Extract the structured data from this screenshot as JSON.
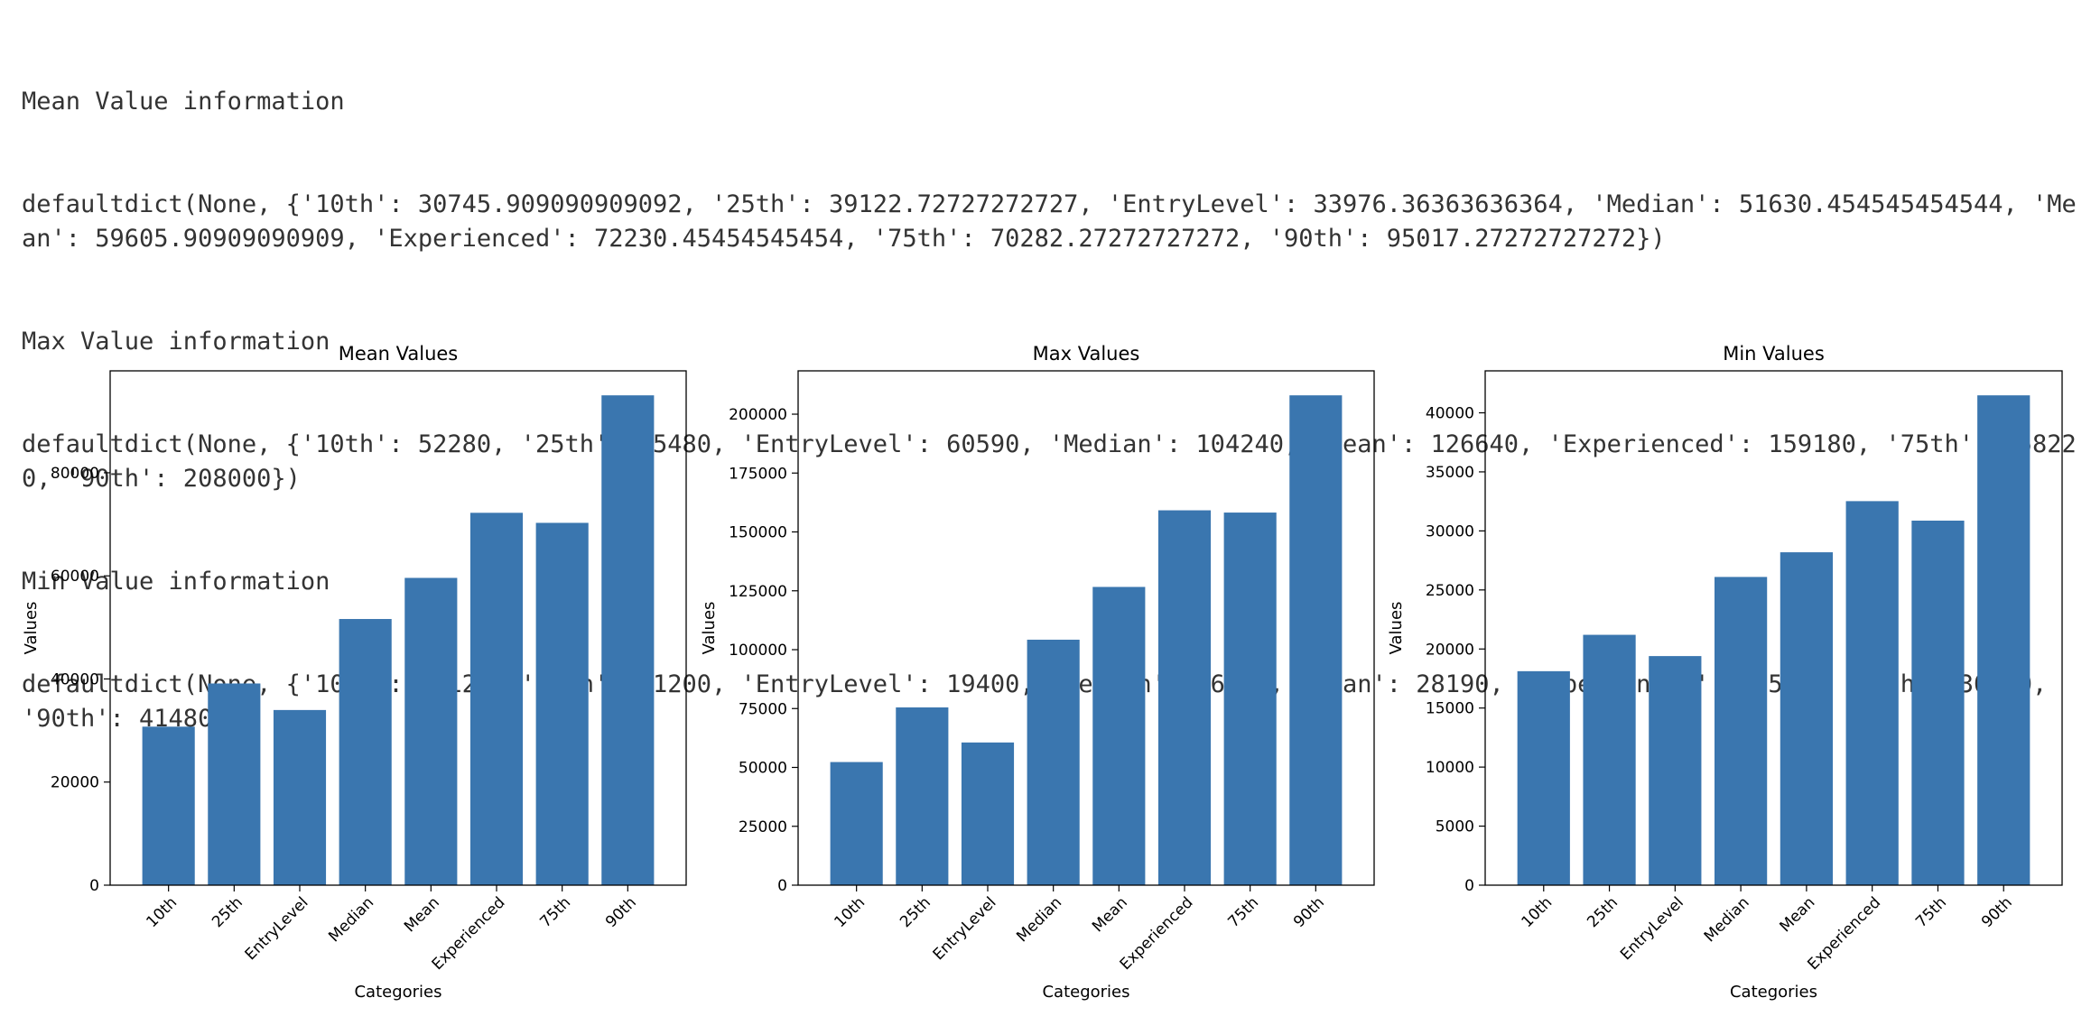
{
  "output": {
    "mean_header": "Mean Value information",
    "mean_dict": "defaultdict(None, {'10th': 30745.909090909092, '25th': 39122.72727272727, 'EntryLevel': 33976.36363636364, 'Median': 51630.454545454544, 'Mean': 59605.90909090909, 'Experienced': 72230.45454545454, '75th': 70282.27272727272, '90th': 95017.27272727272})",
    "max_header": "Max Value information",
    "max_dict": "defaultdict(None, {'10th': 52280, '25th': 75480, 'EntryLevel': 60590, 'Median': 104240, 'Mean': 126640, 'Experienced': 159180, '75th': 158220, '90th': 208000})",
    "min_header": "Min Value information",
    "min_dict": "defaultdict(None, {'10th': 18120, '25th': 21200, 'EntryLevel': 19400, 'Median': 26100, 'Mean': 28190, 'Experienced': 32520, '75th': 30870, '90th': 41480})"
  },
  "colors": {
    "bar": "#3a76af",
    "axis": "#000000"
  },
  "chart_data": [
    {
      "type": "bar",
      "title": "Mean Values",
      "xlabel": "Categories",
      "ylabel": "Values",
      "categories": [
        "10th",
        "25th",
        "EntryLevel",
        "Median",
        "Mean",
        "Experienced",
        "75th",
        "90th"
      ],
      "values": [
        30745.909090909092,
        39122.72727272727,
        33976.36363636364,
        51630.454545454544,
        59605.90909090909,
        72230.45454545454,
        70282.27272727272,
        95017.27272727272
      ],
      "ylim": [
        0,
        99768.13636363637
      ],
      "yticks": [
        0,
        20000,
        40000,
        60000,
        80000
      ],
      "grid": false,
      "legend": false
    },
    {
      "type": "bar",
      "title": "Max Values",
      "xlabel": "Categories",
      "ylabel": "Values",
      "categories": [
        "10th",
        "25th",
        "EntryLevel",
        "Median",
        "Mean",
        "Experienced",
        "75th",
        "90th"
      ],
      "values": [
        52280,
        75480,
        60590,
        104240,
        126640,
        159180,
        158220,
        208000
      ],
      "ylim": [
        0,
        218400
      ],
      "yticks": [
        0,
        25000,
        50000,
        75000,
        100000,
        125000,
        150000,
        175000,
        200000
      ],
      "grid": false,
      "legend": false
    },
    {
      "type": "bar",
      "title": "Min Values",
      "xlabel": "Categories",
      "ylabel": "Values",
      "categories": [
        "10th",
        "25th",
        "EntryLevel",
        "Median",
        "Mean",
        "Experienced",
        "75th",
        "90th"
      ],
      "values": [
        18120,
        21200,
        19400,
        26100,
        28190,
        32520,
        30870,
        41480
      ],
      "ylim": [
        0,
        43554
      ],
      "yticks": [
        0,
        5000,
        10000,
        15000,
        20000,
        25000,
        30000,
        35000,
        40000
      ],
      "grid": false,
      "legend": false
    }
  ]
}
